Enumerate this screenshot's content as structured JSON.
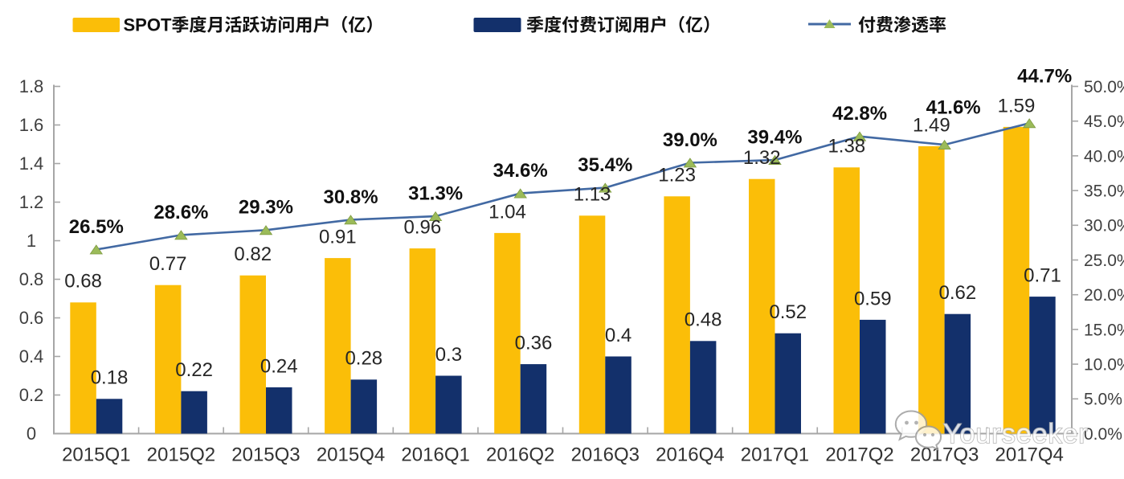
{
  "page": {
    "background": "#ffffff",
    "watermark": {
      "text": "Yourseeker",
      "icon": "wechat-bubbles-icon"
    }
  },
  "legend": {
    "items": [
      {
        "label": "SPOT季度月活跃访问用户（亿）",
        "swatch": "bar",
        "color": "#FBBE08"
      },
      {
        "label": "季度付费订阅用户（亿）",
        "swatch": "bar",
        "color": "#13306B"
      },
      {
        "label": "付费渗透率",
        "swatch": "line-triangle-marker",
        "color": "#4269A3",
        "marker_color": "#9BBB59"
      }
    ]
  },
  "chart_data": {
    "type": "bar",
    "subtype": "grouped-bars-with-line",
    "categories": [
      "2015Q1",
      "2015Q2",
      "2015Q3",
      "2015Q4",
      "2016Q1",
      "2016Q2",
      "2016Q3",
      "2016Q4",
      "2017Q1",
      "2017Q2",
      "2017Q3",
      "2017Q4"
    ],
    "series": [
      {
        "name": "SPOT季度月活跃访问用户（亿）",
        "type": "bar",
        "axis": "left",
        "color": "#FBBE08",
        "values": [
          0.68,
          0.77,
          0.82,
          0.91,
          0.96,
          1.04,
          1.13,
          1.23,
          1.32,
          1.38,
          1.49,
          1.59
        ],
        "labels": [
          "0.68",
          "0.77",
          "0.82",
          "0.91",
          "0.96",
          "1.04",
          "1.13",
          "1.23",
          "1.32",
          "1.38",
          "1.49",
          "1.59"
        ]
      },
      {
        "name": "季度付费订阅用户（亿）",
        "type": "bar",
        "axis": "left",
        "color": "#13306B",
        "values": [
          0.18,
          0.22,
          0.24,
          0.28,
          0.3,
          0.36,
          0.4,
          0.48,
          0.52,
          0.59,
          0.62,
          0.71
        ],
        "labels": [
          "0.18",
          "0.22",
          "0.24",
          "0.28",
          "0.3",
          "0.36",
          "0.4",
          "0.48",
          "0.52",
          "0.59",
          "0.62",
          "0.71"
        ]
      },
      {
        "name": "付费渗透率",
        "type": "line",
        "axis": "right",
        "color": "#4269A3",
        "marker": "triangle",
        "marker_color": "#9BBB59",
        "values": [
          26.5,
          28.6,
          29.3,
          30.8,
          31.3,
          34.6,
          35.4,
          39.0,
          39.4,
          42.8,
          41.6,
          44.7
        ],
        "labels": [
          "26.5%",
          "28.6%",
          "29.3%",
          "30.8%",
          "31.3%",
          "34.6%",
          "35.4%",
          "39.0%",
          "39.4%",
          "42.8%",
          "41.6%",
          "44.7%"
        ]
      }
    ],
    "title": "",
    "xlabel": "",
    "ylabel": "",
    "left_axis": {
      "min": 0,
      "max": 1.8,
      "step": 0.2,
      "tick_labels": [
        "0",
        "0.2",
        "0.4",
        "0.6",
        "0.8",
        "1",
        "1.2",
        "1.4",
        "1.6",
        "1.8"
      ]
    },
    "right_axis": {
      "min": 0,
      "max": 50,
      "step": 5,
      "unit": "%",
      "tick_labels": [
        "0.0%",
        "5.0%",
        "10.0%",
        "15.0%",
        "20.0%",
        "25.0%",
        "30.0%",
        "35.0%",
        "40.0%",
        "45.0%",
        "50.0%"
      ]
    },
    "legend_position": "top",
    "gridlines": false,
    "colors": {
      "bar1": "#FBBE08",
      "bar2": "#13306B",
      "line": "#4269A3",
      "marker": "#9BBB59",
      "axis_line": "#A6A6A6",
      "axis_text": "#3F3F3F",
      "label_text": "#262626"
    }
  }
}
